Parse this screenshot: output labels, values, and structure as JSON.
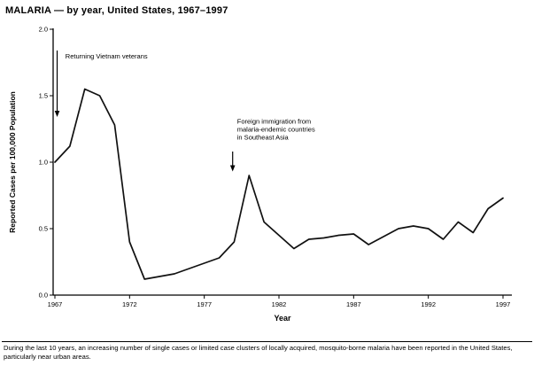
{
  "chart_data": {
    "type": "line",
    "title": "MALARIA — by year, United States, 1967–1997",
    "xlabel": "Year",
    "ylabel": "Reported Cases per 100,000 Population",
    "ylim": [
      0.0,
      2.0
    ],
    "yticks": [
      0.0,
      0.5,
      1.0,
      1.5,
      2.0
    ],
    "ytick_labels": [
      "0.0",
      "0.5",
      "1.0",
      "1.5",
      "2.0"
    ],
    "xticks": [
      1967,
      1972,
      1977,
      1982,
      1987,
      1992,
      1997
    ],
    "grid": false,
    "line_color": "#111111",
    "x": [
      1967,
      1968,
      1969,
      1970,
      1971,
      1972,
      1973,
      1974,
      1975,
      1976,
      1977,
      1978,
      1979,
      1980,
      1981,
      1982,
      1983,
      1984,
      1985,
      1986,
      1987,
      1988,
      1989,
      1990,
      1991,
      1992,
      1993,
      1994,
      1995,
      1996,
      1997
    ],
    "values": [
      1.0,
      1.12,
      1.55,
      1.5,
      1.28,
      0.4,
      0.12,
      0.14,
      0.16,
      0.2,
      0.24,
      0.28,
      0.4,
      0.9,
      0.55,
      0.45,
      0.35,
      0.42,
      0.43,
      0.45,
      0.46,
      0.38,
      0.44,
      0.5,
      0.52,
      0.5,
      0.42,
      0.55,
      0.47,
      0.65,
      0.73
    ],
    "annotations": [
      {
        "lines": [
          "Returning Vietnam veterans"
        ],
        "text_x": 1967.7,
        "text_y": 1.78,
        "arrow_x": 1967.15,
        "arrow_from": 1.84,
        "arrow_to": 1.34
      },
      {
        "lines": [
          "Foreign immigration from",
          "malaria-endemic countries",
          "in Southeast Asia"
        ],
        "text_x": 1979.2,
        "text_y": 1.29,
        "arrow_x": 1978.9,
        "arrow_from": 1.08,
        "arrow_to": 0.93
      }
    ],
    "footnote": "During the last 10 years, an increasing number of single cases or limited case clusters of locally acquired, mosquito-borne malaria have been reported in the United States, particularly near urban areas."
  }
}
